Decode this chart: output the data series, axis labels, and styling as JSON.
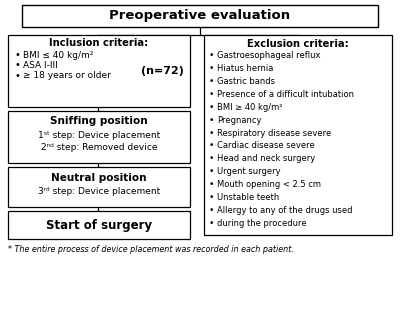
{
  "title": "Preoperative evaluation",
  "inclusion_title": "Inclusion criteria:",
  "inclusion_items": [
    "BMI ≤ 40 kg/m²",
    "ASA I-III",
    "≥ 18 years or older"
  ],
  "inclusion_n": "(n=72)",
  "sniffing_title": "Sniffing position",
  "sniffing_line1": "1ˢᵗ step: Device placement",
  "sniffing_line2": "2ⁿᵈ step: Removed device",
  "neutral_title": "Neutral position",
  "neutral_line1": "3ʳᵈ step: Device placement",
  "surgery_title": "Start of surgery",
  "exclusion_title": "Exclusion criteria:",
  "exclusion_items": [
    "Gastroesophageal reflux",
    "Hiatus hernia",
    "Gastric bands",
    "Presence of a difficult intubation",
    "BMI ≥ 40 kg/m²",
    "Pregnancy",
    "Respiratory disease severe",
    "Cardiac disease severe",
    "Head and neck surgery",
    "Urgent surgery",
    "Mouth opening < 2.5 cm",
    "Unstable teeth",
    "Allergy to any of the drugs used",
    "during the procedure"
  ],
  "footnote": "* The entire process of device placement was recorded in each patient.",
  "bg_color": "#ffffff"
}
